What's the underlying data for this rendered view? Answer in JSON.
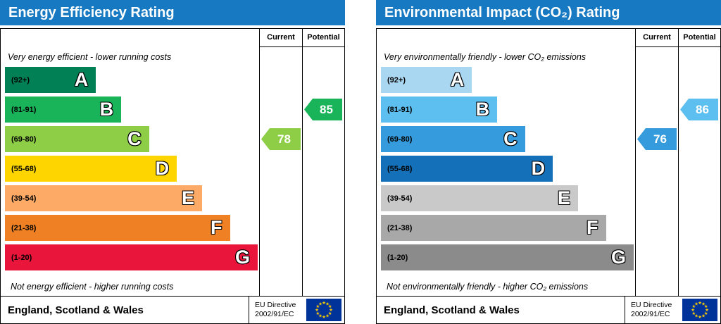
{
  "chart_data": [
    {
      "type": "bar",
      "title": "Energy Efficiency Rating",
      "accent": "#1779c2",
      "columns": {
        "current": "Current",
        "potential": "Potential"
      },
      "top_note": "Very energy efficient - lower running costs",
      "bottom_note": "Not energy efficient - higher running costs",
      "bands": [
        {
          "letter": "A",
          "range": "(92+)",
          "color": "#008054",
          "width_pct": 36
        },
        {
          "letter": "B",
          "range": "(81-91)",
          "color": "#19b459",
          "width_pct": 46
        },
        {
          "letter": "C",
          "range": "(69-80)",
          "color": "#8dce46",
          "width_pct": 57
        },
        {
          "letter": "D",
          "range": "(55-68)",
          "color": "#ffd500",
          "width_pct": 68
        },
        {
          "letter": "E",
          "range": "(39-54)",
          "color": "#fcaa65",
          "width_pct": 78
        },
        {
          "letter": "F",
          "range": "(21-38)",
          "color": "#ef8023",
          "width_pct": 89
        },
        {
          "letter": "G",
          "range": "(1-20)",
          "color": "#e9153b",
          "width_pct": 100
        }
      ],
      "current": {
        "value": 78,
        "band": "C",
        "color": "#8dce46"
      },
      "potential": {
        "value": 85,
        "band": "B",
        "color": "#19b459"
      },
      "footer": {
        "region": "England, Scotland & Wales",
        "directive_line1": "EU Directive",
        "directive_line2": "2002/91/EC"
      }
    },
    {
      "type": "bar",
      "title": "Environmental Impact (CO₂) Rating",
      "accent": "#1779c2",
      "columns": {
        "current": "Current",
        "potential": "Potential"
      },
      "top_note": "Very environmentally friendly - lower CO₂ emissions",
      "bottom_note": "Not environmentally friendly - higher CO₂ emissions",
      "bands": [
        {
          "letter": "A",
          "range": "(92+)",
          "color": "#a9d7f1",
          "width_pct": 36
        },
        {
          "letter": "B",
          "range": "(81-91)",
          "color": "#5dbef0",
          "width_pct": 46
        },
        {
          "letter": "C",
          "range": "(69-80)",
          "color": "#359bdc",
          "width_pct": 57
        },
        {
          "letter": "D",
          "range": "(55-68)",
          "color": "#1470b8",
          "width_pct": 68
        },
        {
          "letter": "E",
          "range": "(39-54)",
          "color": "#c9c9c9",
          "width_pct": 78
        },
        {
          "letter": "F",
          "range": "(21-38)",
          "color": "#a8a8a8",
          "width_pct": 89
        },
        {
          "letter": "G",
          "range": "(1-20)",
          "color": "#8b8b8b",
          "width_pct": 100
        }
      ],
      "current": {
        "value": 76,
        "band": "C",
        "color": "#359bdc"
      },
      "potential": {
        "value": 86,
        "band": "B",
        "color": "#5dbef0"
      },
      "footer": {
        "region": "England, Scotland & Wales",
        "directive_line1": "EU Directive",
        "directive_line2": "2002/91/EC"
      }
    }
  ]
}
